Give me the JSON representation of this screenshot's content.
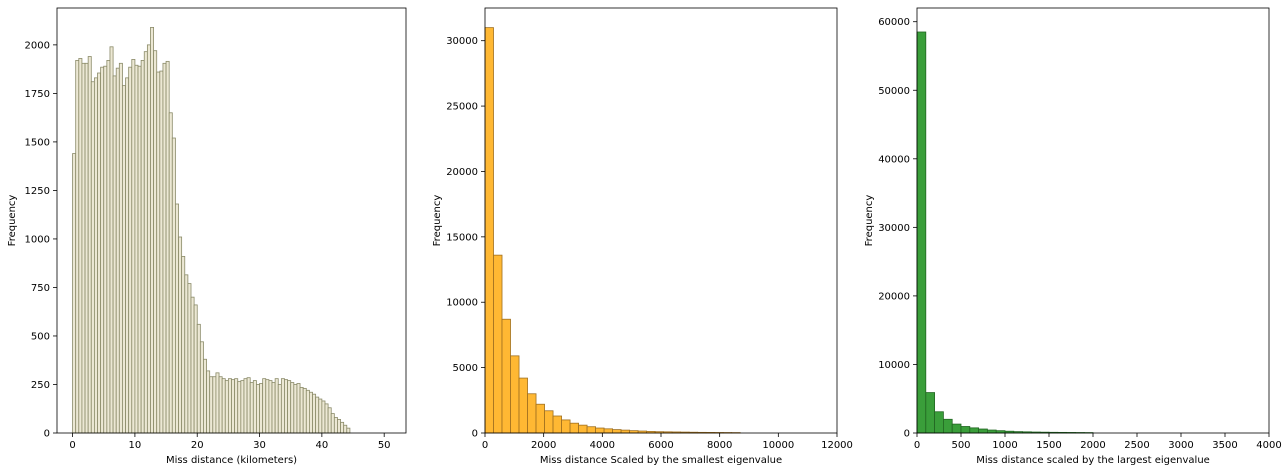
{
  "chart_data": [
    {
      "type": "bar",
      "xlabel": "Miss distance (kilometers)",
      "ylabel": "Frequency",
      "xlim": [
        -2.5,
        53.5
      ],
      "ylim": [
        0,
        2190
      ],
      "xticks": [
        0,
        10,
        20,
        30,
        40,
        50
      ],
      "yticks": [
        0,
        250,
        500,
        750,
        1000,
        1250,
        1500,
        1750,
        2000
      ],
      "bin_width": 0.5,
      "x_start": 0,
      "fill": "#ece8d4",
      "edge": "#8a8a68",
      "values": [
        1440,
        1920,
        1930,
        1905,
        1905,
        1940,
        1810,
        1830,
        1855,
        1885,
        1890,
        1920,
        1990,
        1840,
        1880,
        1905,
        1790,
        1830,
        1885,
        1925,
        1895,
        1890,
        1920,
        1965,
        2000,
        2090,
        1970,
        1860,
        1865,
        1905,
        1915,
        1650,
        1520,
        1180,
        1010,
        910,
        815,
        770,
        700,
        660,
        560,
        470,
        380,
        320,
        290,
        290,
        310,
        290,
        280,
        270,
        280,
        275,
        280,
        265,
        270,
        280,
        285,
        260,
        270,
        250,
        255,
        280,
        275,
        270,
        260,
        280,
        250,
        280,
        275,
        270,
        260,
        250,
        255,
        235,
        230,
        220,
        210,
        200,
        185,
        175,
        165,
        150,
        130,
        100,
        80,
        70,
        55,
        40,
        25
      ]
    },
    {
      "type": "bar",
      "xlabel": "Miss distance Scaled by the smallest eigenvalue",
      "ylabel": "Frequency",
      "xlim": [
        0,
        12000
      ],
      "ylim": [
        0,
        32500
      ],
      "xticks": [
        0,
        2000,
        4000,
        6000,
        8000,
        10000,
        12000
      ],
      "yticks": [
        0,
        5000,
        10000,
        15000,
        20000,
        25000,
        30000
      ],
      "bin_width": 290,
      "x_start": 0,
      "fill": "#ffb833",
      "edge": "#a07020",
      "values": [
        31000,
        13600,
        8700,
        5900,
        4200,
        3000,
        2200,
        1700,
        1300,
        1000,
        750,
        600,
        480,
        380,
        320,
        260,
        220,
        180,
        150,
        120,
        100,
        90,
        80,
        70,
        60,
        50,
        45,
        40,
        35,
        30
      ]
    },
    {
      "type": "bar",
      "xlabel": "Miss distance scaled by the largest eigenvalue",
      "ylabel": "Frequency",
      "xlim": [
        0,
        4000
      ],
      "ylim": [
        0,
        62000
      ],
      "xticks": [
        0,
        500,
        1000,
        1500,
        2000,
        2500,
        3000,
        3500,
        4000
      ],
      "yticks": [
        0,
        10000,
        20000,
        30000,
        40000,
        50000,
        60000
      ],
      "bin_width": 100,
      "x_start": 0,
      "fill": "#3a9e3a",
      "edge": "#226622",
      "values": [
        58500,
        5900,
        3100,
        2000,
        1300,
        950,
        750,
        580,
        430,
        340,
        260,
        200,
        170,
        140,
        120,
        100,
        90,
        80,
        70,
        60
      ]
    }
  ]
}
